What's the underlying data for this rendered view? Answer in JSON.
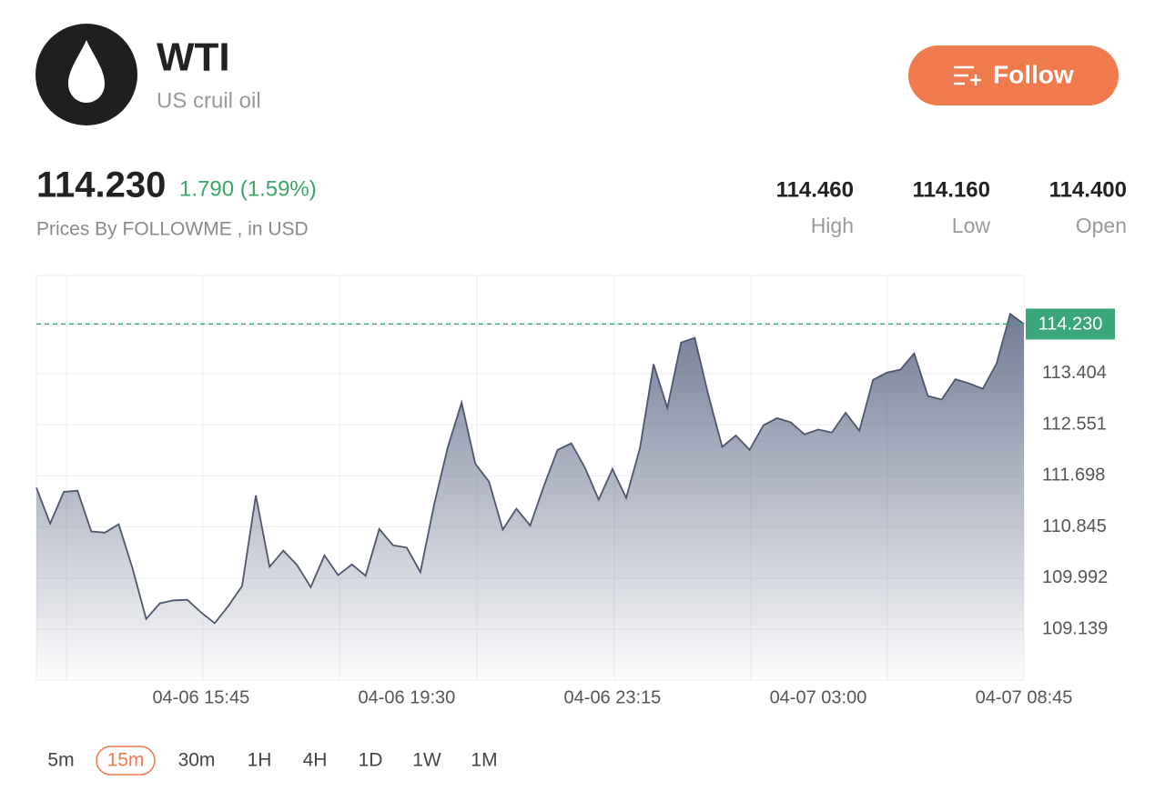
{
  "header": {
    "symbol": "WTI",
    "name": "US cruil oil",
    "follow": "Follow"
  },
  "quote": {
    "price": "114.230",
    "change": "1.790 (1.59%)",
    "source": "Prices By FOLLOWME , in USD",
    "stats": [
      {
        "value": "114.460",
        "label": "High"
      },
      {
        "value": "114.160",
        "label": "Low"
      },
      {
        "value": "114.400",
        "label": "Open"
      }
    ]
  },
  "chart_data": {
    "type": "area",
    "categories": [
      null,
      null,
      null,
      null,
      null,
      null,
      null,
      null,
      null,
      null,
      null,
      null,
      "04-06 15:45",
      null,
      null,
      null,
      null,
      null,
      null,
      null,
      null,
      null,
      null,
      null,
      null,
      null,
      null,
      "04-06 19:30",
      null,
      null,
      null,
      null,
      null,
      null,
      null,
      null,
      null,
      null,
      null,
      null,
      null,
      null,
      "04-06 23:15",
      null,
      null,
      null,
      null,
      null,
      null,
      null,
      null,
      null,
      null,
      null,
      null,
      null,
      null,
      "04-07 03:00",
      null,
      null,
      null,
      null,
      null,
      null,
      null,
      null,
      null,
      null,
      null,
      null,
      null,
      null,
      "04-07 08:45"
    ],
    "values": [
      111.5,
      110.9,
      111.43,
      111.45,
      110.77,
      110.75,
      110.89,
      110.16,
      109.31,
      109.57,
      109.62,
      109.63,
      109.42,
      109.24,
      109.53,
      109.86,
      111.37,
      110.18,
      110.45,
      110.21,
      109.84,
      110.37,
      110.04,
      110.22,
      110.03,
      110.81,
      110.54,
      110.5,
      110.09,
      111.22,
      112.18,
      112.92,
      111.9,
      111.6,
      110.8,
      111.15,
      110.87,
      111.53,
      112.13,
      112.24,
      111.83,
      111.3,
      111.81,
      111.33,
      112.16,
      113.56,
      112.83,
      113.92,
      114.0,
      113.04,
      112.18,
      112.37,
      112.13,
      112.54,
      112.66,
      112.59,
      112.39,
      112.47,
      112.42,
      112.75,
      112.45,
      113.3,
      113.42,
      113.47,
      113.74,
      113.03,
      112.97,
      113.31,
      113.24,
      113.15,
      113.57,
      114.4,
      114.23
    ],
    "color": "#4d566b",
    "ylim": [
      108.29,
      115.04
    ],
    "yticks": [
      109.139,
      109.992,
      110.845,
      111.698,
      112.551,
      113.404
    ],
    "last_price": {
      "value": 114.23,
      "label": "114.230"
    },
    "grid": true
  },
  "timeframes": {
    "items": [
      "5m",
      "15m",
      "30m",
      "1H",
      "4H",
      "1D",
      "1W",
      "1M"
    ],
    "active": 1
  }
}
